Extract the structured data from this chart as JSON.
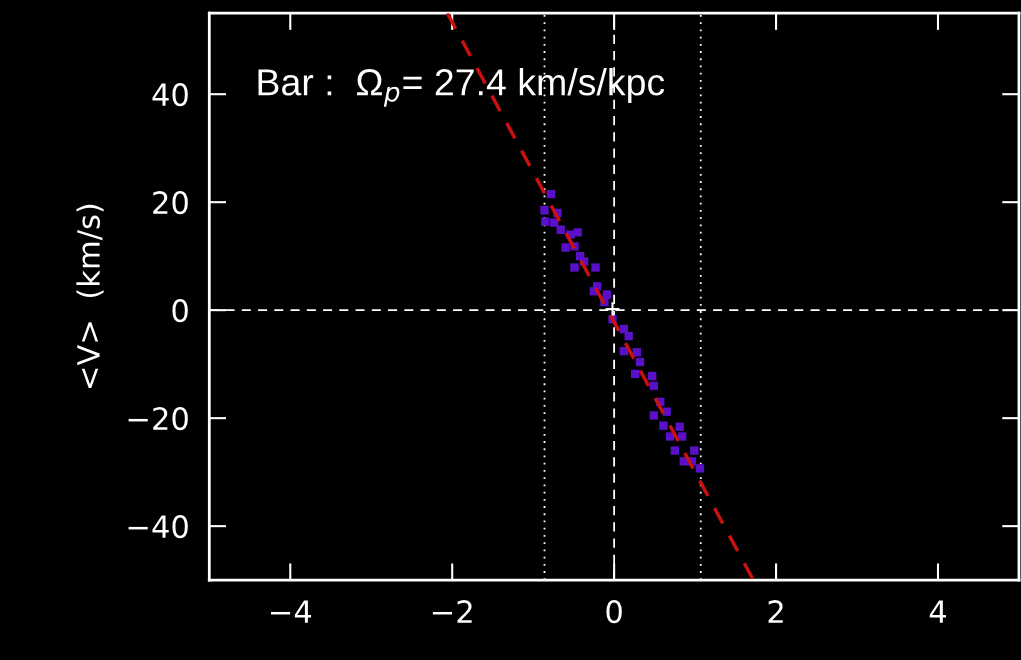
{
  "chart_data": {
    "type": "scatter",
    "ylabel": "<V>  (km/s)",
    "annotations": [
      "Bar :  Ω$_{p}$= 27.4 km/s/kpc"
    ],
    "xlim": [
      -5,
      5
    ],
    "ylim": [
      -50,
      55
    ],
    "xticks": [
      {
        "value": -4,
        "label": "−4"
      },
      {
        "value": -2,
        "label": "−2"
      },
      0,
      2,
      4
    ],
    "yticks": [
      {
        "value": -40,
        "label": "−40"
      },
      {
        "value": -20,
        "label": "−20"
      },
      0,
      20,
      40
    ],
    "grid": false,
    "marker": "square",
    "series": [
      {
        "color": "#5a10c8",
        "x": [
          -0.78,
          -0.86,
          -0.7,
          -0.85,
          -0.74,
          -0.66,
          -0.54,
          -0.45,
          -0.6,
          -0.49,
          -0.42,
          -0.37,
          -0.49,
          -0.23,
          -0.21,
          -0.25,
          -0.09,
          -0.12,
          -0.02,
          0.12,
          0.18,
          0.12,
          0.28,
          0.32,
          0.26,
          0.47,
          0.49,
          0.57,
          0.49,
          0.65,
          0.61,
          0.81,
          0.69,
          0.84,
          0.75,
          0.99,
          0.86,
          0.96,
          1.06
        ],
        "values": [
          21.5,
          18.5,
          18,
          16.4,
          16.2,
          14.9,
          14,
          14.4,
          11.6,
          11.8,
          10,
          9,
          7.9,
          7.9,
          4.4,
          3.5,
          2.9,
          1.5,
          -1.7,
          -3.5,
          -4.8,
          -7.6,
          -7.8,
          -9.6,
          -11.8,
          -12.2,
          -14,
          -17,
          -19.5,
          -18.8,
          -21.4,
          -21.6,
          -23.4,
          -23.4,
          -26,
          -26,
          -28,
          -28,
          -29.3
        ]
      },
      {
        "color": "#ffffff",
        "marker": "cross",
        "x": [
          -0.02
        ],
        "values": [
          0.2
        ]
      },
      {
        "type": "line",
        "color": "#cc1010",
        "line_style": "dashed",
        "marker": "none",
        "x": [
          -2.06,
          1.72
        ],
        "values": [
          55,
          -50
        ]
      }
    ],
    "ref_lines": [
      {
        "axis": "x",
        "value": 0,
        "color": "#ffffff",
        "line_style": "dashed"
      },
      {
        "axis": "y",
        "value": 0,
        "color": "#ffffff",
        "line_style": "dashed"
      },
      {
        "axis": "x",
        "value": -0.86,
        "color": "#ffffff",
        "line_style": "dotted"
      },
      {
        "axis": "x",
        "value": 1.07,
        "color": "#ffffff",
        "line_style": "dotted"
      }
    ]
  }
}
